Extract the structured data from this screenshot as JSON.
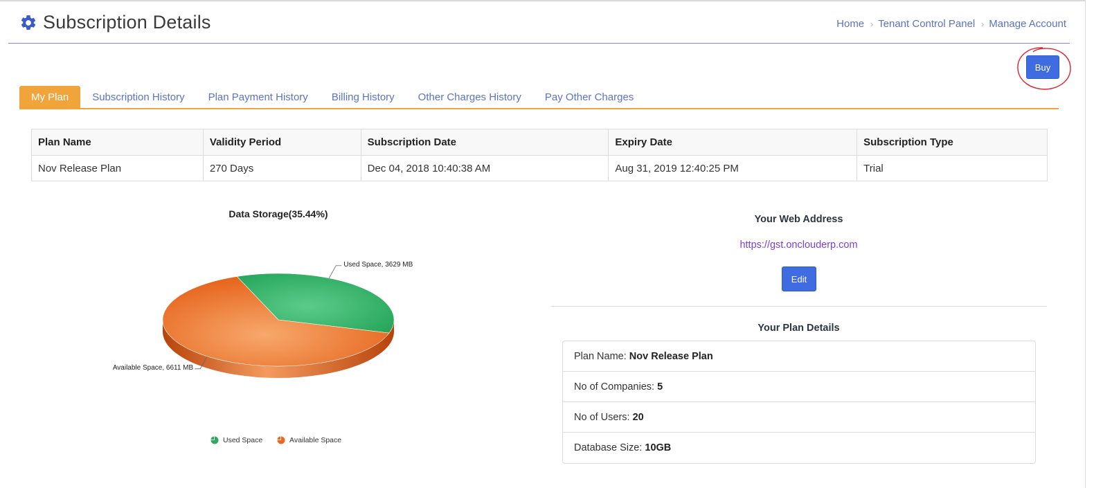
{
  "header": {
    "title": "Subscription Details",
    "icon": "gear-icon",
    "breadcrumb": [
      "Home",
      "Tenant Control Panel",
      "Manage Account"
    ],
    "separator": "›"
  },
  "actions": {
    "buy_label": "Buy"
  },
  "tabs": [
    {
      "label": "My Plan",
      "active": true
    },
    {
      "label": "Subscription History",
      "active": false
    },
    {
      "label": "Plan Payment History",
      "active": false
    },
    {
      "label": "Billing History",
      "active": false
    },
    {
      "label": "Other Charges History",
      "active": false
    },
    {
      "label": "Pay Other Charges",
      "active": false
    }
  ],
  "plan_table": {
    "headers": [
      "Plan Name",
      "Validity Period",
      "Subscription Date",
      "Expiry Date",
      "Subscription Type"
    ],
    "row": [
      "Nov Release Plan",
      "270 Days",
      "Dec 04, 2018 10:40:38 AM",
      "Aug 31, 2019 12:40:25 PM",
      "Trial"
    ]
  },
  "chart_data": {
    "type": "pie",
    "title": "Data Storage(35.44%)",
    "slices": [
      {
        "name": "Used Space",
        "value": 3629,
        "unit": "MB",
        "label": "Used Space, 3629 MB",
        "color": "#2eaa5f"
      },
      {
        "name": "Available Space",
        "value": 6611,
        "unit": "MB",
        "label": "Available Space, 6611 MB",
        "color": "#ea6a1f"
      }
    ],
    "legend": [
      "Used Space",
      "Available Space"
    ],
    "legend_position": "bottom"
  },
  "web_address": {
    "title": "Your Web Address",
    "url": "https://gst.onclouderp.com",
    "edit_label": "Edit"
  },
  "plan_details": {
    "title": "Your Plan Details",
    "items": [
      {
        "label": "Plan Name: ",
        "value": "Nov Release Plan"
      },
      {
        "label": "No of Companies: ",
        "value": "5"
      },
      {
        "label": "No of Users: ",
        "value": "20"
      },
      {
        "label": "Database Size: ",
        "value": "10GB"
      }
    ]
  },
  "colors": {
    "accent": "#3f6ce0",
    "tab_active": "#f0a43a",
    "link": "#5a73c8",
    "url_link": "#7a3fd6",
    "highlight_circle": "#e0202a"
  }
}
